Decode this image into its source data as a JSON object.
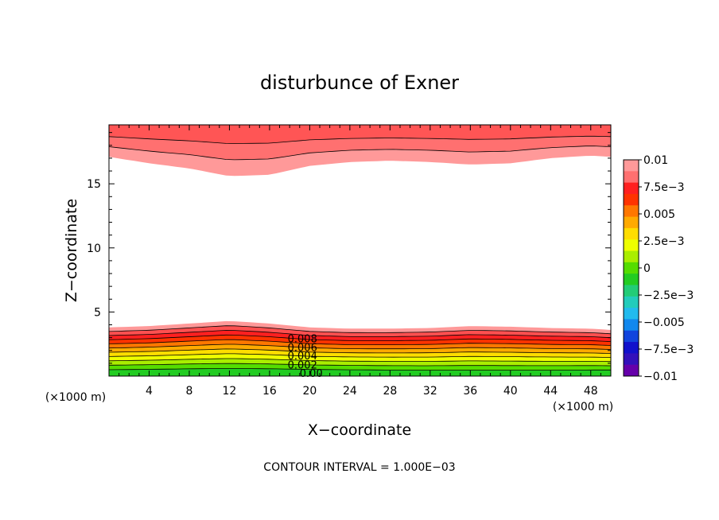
{
  "chart_data": {
    "type": "contour",
    "title": "disturbunce of Exner",
    "xlabel": "X−coordinate",
    "ylabel": "Z−coordinate",
    "x_unit_label": "(×1000 m)",
    "y_unit_label": "(×1000 m)",
    "xlim": [
      0,
      50
    ],
    "ylim": [
      0,
      19.6
    ],
    "x_ticks": [
      4,
      8,
      12,
      16,
      20,
      24,
      28,
      32,
      36,
      40,
      44,
      48
    ],
    "x_tick_labels": [
      "4",
      "8",
      "12",
      "16",
      "20",
      "24",
      "28",
      "32",
      "36",
      "40",
      "44",
      "48"
    ],
    "y_ticks": [
      5,
      10,
      15
    ],
    "y_tick_labels": [
      "5",
      "10",
      "15"
    ],
    "x_profile": [
      0,
      4,
      8,
      12,
      16,
      20,
      24,
      28,
      32,
      36,
      40,
      44,
      48,
      50
    ],
    "low_band_top_z": [
      3.8,
      3.9,
      4.1,
      4.3,
      4.1,
      3.8,
      3.7,
      3.7,
      3.75,
      3.9,
      3.85,
      3.75,
      3.7,
      3.6
    ],
    "high_band_bottom_z": [
      17.1,
      16.6,
      16.2,
      15.6,
      15.7,
      16.4,
      16.7,
      16.8,
      16.7,
      16.5,
      16.6,
      17.0,
      17.2,
      17.1
    ],
    "contour_labels": [
      {
        "text": "0.008",
        "x": 17.8,
        "z": 2.95
      },
      {
        "text": "0.006",
        "x": 17.8,
        "z": 2.25
      },
      {
        "text": "0.004",
        "x": 17.8,
        "z": 1.6
      },
      {
        "text": "0.002",
        "x": 17.8,
        "z": 0.9
      },
      {
        "text": "0.00",
        "x": 19.0,
        "z": 0.25
      }
    ],
    "colorbar": {
      "min": -0.01,
      "max": 0.01,
      "labels": [
        "0.01",
        "7.5e−3",
        "0.005",
        "2.5e−3",
        "0",
        "−2.5e−3",
        "−0.005",
        "−7.5e−3",
        "−0.01"
      ],
      "colors": [
        "#ff9999",
        "#ff7070",
        "#ff2020",
        "#ff3300",
        "#ff7700",
        "#ffaa00",
        "#ffdd00",
        "#eeff00",
        "#aaee00",
        "#55dd00",
        "#22cc22",
        "#22cc77",
        "#22ccbb",
        "#22bbee",
        "#1188ee",
        "#1144dd",
        "#1111cc",
        "#3311bb",
        "#6600aa"
      ]
    },
    "legend_position": "right"
  },
  "footer": {
    "contour_interval": "CONTOUR INTERVAL = 1.000E−03"
  }
}
